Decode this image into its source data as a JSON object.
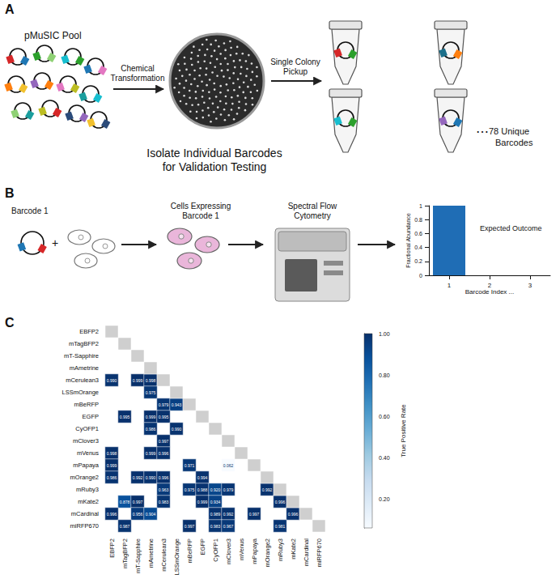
{
  "figure": {
    "panel_a": {
      "label": "A",
      "pool_title": "pMuSIC Pool",
      "step1": [
        "Chemical",
        "Transformation"
      ],
      "step2": [
        "Single Colony",
        "Pickup"
      ],
      "caption": [
        "Isolate Individual Barcodes",
        "for Validation Testing"
      ],
      "ellipsis": "⋯",
      "count_text": [
        "78 Unique",
        "Barcodes"
      ]
    },
    "panel_b": {
      "label": "B",
      "plasmid_label": "Barcode 1",
      "plus": "+",
      "cells_label": [
        "Cells Expressing",
        "Barcode 1"
      ],
      "instrument_label": [
        "Spectral Flow",
        "Cytometry"
      ]
    },
    "panel_c": {
      "label": "C"
    }
  },
  "chart_data": [
    {
      "type": "bar",
      "annotation": "Expected Outcome",
      "x_label": "Barcode Index ...",
      "y_label": "Fractional Abundance",
      "categories": [
        "1",
        "2",
        "3"
      ],
      "values": [
        1,
        0,
        0
      ],
      "color": "#1f6db5",
      "ylim": [
        0,
        1
      ],
      "yticks": [
        0,
        0.2,
        0.4,
        0.6,
        0.8,
        1
      ],
      "grid": false
    },
    {
      "type": "heatmap",
      "categories": [
        "EBFP2",
        "mTagBFP2",
        "mT-Sapphire",
        "mAmetrine",
        "mCerulean3",
        "LSSmOrange",
        "mBeRFP",
        "EGFP",
        "CyOFP1",
        "mClover3",
        "mVenus",
        "mPapaya",
        "mOrange2",
        "mRuby3",
        "mKate2",
        "mCardinal",
        "miRFP670"
      ],
      "data_labels": true,
      "grid": false,
      "cells": [
        {
          "row": "mCerulean3",
          "col": "EBFP2",
          "value": 0.99,
          "value_label": "0.990"
        },
        {
          "row": "mCerulean3",
          "col": "mT-Sapphire",
          "value": 0.999,
          "value_label": "0.999"
        },
        {
          "row": "mCerulean3",
          "col": "mAmetrine",
          "value": 0.998,
          "value_label": "0.998"
        },
        {
          "row": "LSSmOrange",
          "col": "mAmetrine",
          "value": 0.975,
          "value_label": "0.975"
        },
        {
          "row": "mBeRFP",
          "col": "mCerulean3",
          "value": 0.979,
          "value_label": "0.979"
        },
        {
          "row": "mBeRFP",
          "col": "LSSmOrange",
          "value": 0.943,
          "value_label": "0.943"
        },
        {
          "row": "EGFP",
          "col": "mTagBFP2",
          "value": 0.995,
          "value_label": "0.995"
        },
        {
          "row": "EGFP",
          "col": "mAmetrine",
          "value": 0.999,
          "value_label": "0.999"
        },
        {
          "row": "EGFP",
          "col": "mCerulean3",
          "value": 0.995,
          "value_label": "0.995"
        },
        {
          "row": "CyOFP1",
          "col": "mAmetrine",
          "value": 0.986,
          "value_label": "0.986"
        },
        {
          "row": "CyOFP1",
          "col": "LSSmOrange",
          "value": 0.99,
          "value_label": "0.990"
        },
        {
          "row": "mClover3",
          "col": "mCerulean3",
          "value": 0.997,
          "value_label": "0.997"
        },
        {
          "row": "mVenus",
          "col": "EBFP2",
          "value": 0.998,
          "value_label": "0.998"
        },
        {
          "row": "mVenus",
          "col": "mAmetrine",
          "value": 0.999,
          "value_label": "0.999"
        },
        {
          "row": "mVenus",
          "col": "mCerulean3",
          "value": 0.996,
          "value_label": "0.996"
        },
        {
          "row": "mPapaya",
          "col": "EBFP2",
          "value": 0.999,
          "value_label": "0.999"
        },
        {
          "row": "mPapaya",
          "col": "mBeRFP",
          "value": 0.971,
          "value_label": "0.971"
        },
        {
          "row": "mPapaya",
          "col": "mClover3",
          "value": 0.062,
          "value_label": "0.062"
        },
        {
          "row": "mOrange2",
          "col": "EBFP2",
          "value": 0.986,
          "value_label": "0.986"
        },
        {
          "row": "mOrange2",
          "col": "mT-Sapphire",
          "value": 0.992,
          "value_label": "0.992"
        },
        {
          "row": "mOrange2",
          "col": "mAmetrine",
          "value": 0.99,
          "value_label": "0.990"
        },
        {
          "row": "mOrange2",
          "col": "mCerulean3",
          "value": 0.996,
          "value_label": "0.996"
        },
        {
          "row": "mOrange2",
          "col": "EGFP",
          "value": 0.994,
          "value_label": "0.994"
        },
        {
          "row": "mRuby3",
          "col": "mCerulean3",
          "value": 0.963,
          "value_label": "0.963"
        },
        {
          "row": "mRuby3",
          "col": "mBeRFP",
          "value": 0.975,
          "value_label": "0.975"
        },
        {
          "row": "mRuby3",
          "col": "EGFP",
          "value": 0.988,
          "value_label": "0.988"
        },
        {
          "row": "mRuby3",
          "col": "CyOFP1",
          "value": 0.92,
          "value_label": "0.920"
        },
        {
          "row": "mRuby3",
          "col": "mClover3",
          "value": 0.979,
          "value_label": "0.979"
        },
        {
          "row": "mRuby3",
          "col": "mOrange2",
          "value": 0.992,
          "value_label": "0.992"
        },
        {
          "row": "mKate2",
          "col": "mTagBFP2",
          "value": 0.878,
          "value_label": "0.878"
        },
        {
          "row": "mKate2",
          "col": "mT-Sapphire",
          "value": 0.997,
          "value_label": "0.997"
        },
        {
          "row": "mKate2",
          "col": "mCerulean3",
          "value": 0.983,
          "value_label": "0.983"
        },
        {
          "row": "mKate2",
          "col": "EGFP",
          "value": 0.999,
          "value_label": "0.999"
        },
        {
          "row": "mKate2",
          "col": "CyOFP1",
          "value": 0.934,
          "value_label": "0.934"
        },
        {
          "row": "mKate2",
          "col": "mRuby3",
          "value": 0.996,
          "value_label": "0.996"
        },
        {
          "row": "mCardinal",
          "col": "EBFP2",
          "value": 0.996,
          "value_label": "0.996"
        },
        {
          "row": "mCardinal",
          "col": "mT-Sapphire",
          "value": 0.956,
          "value_label": "0.956"
        },
        {
          "row": "mCardinal",
          "col": "mAmetrine",
          "value": 0.904,
          "value_label": "0.904"
        },
        {
          "row": "mCardinal",
          "col": "CyOFP1",
          "value": 0.989,
          "value_label": "0.989"
        },
        {
          "row": "mCardinal",
          "col": "mClover3",
          "value": 0.992,
          "value_label": "0.992"
        },
        {
          "row": "mCardinal",
          "col": "mPapaya",
          "value": 0.997,
          "value_label": "0.997"
        },
        {
          "row": "mCardinal",
          "col": "mKate2",
          "value": 0.996,
          "value_label": "0.996"
        },
        {
          "row": "miRFP670",
          "col": "mTagBFP2",
          "value": 0.987,
          "value_label": "0.987"
        },
        {
          "row": "miRFP670",
          "col": "mBeRFP",
          "value": 0.997,
          "value_label": "0.997"
        },
        {
          "row": "miRFP670",
          "col": "CyOFP1",
          "value": 0.983,
          "value_label": "0.983"
        },
        {
          "row": "miRFP670",
          "col": "mClover3",
          "value": 0.967,
          "value_label": "0.967"
        },
        {
          "row": "miRFP670",
          "col": "mRuby3",
          "value": 0.981,
          "value_label": "0.981"
        }
      ],
      "colorbar": {
        "label": "True Positive Rate",
        "range": [
          0.062,
          1
        ],
        "ticks": [
          {
            "value": 0.2,
            "label": "0.20"
          },
          {
            "value": 0.4,
            "label": "0.40"
          },
          {
            "value": 0.6,
            "label": "0.60"
          },
          {
            "value": 0.8,
            "label": "0.80"
          },
          {
            "value": 1,
            "label": "1.00"
          }
        ]
      }
    }
  ]
}
